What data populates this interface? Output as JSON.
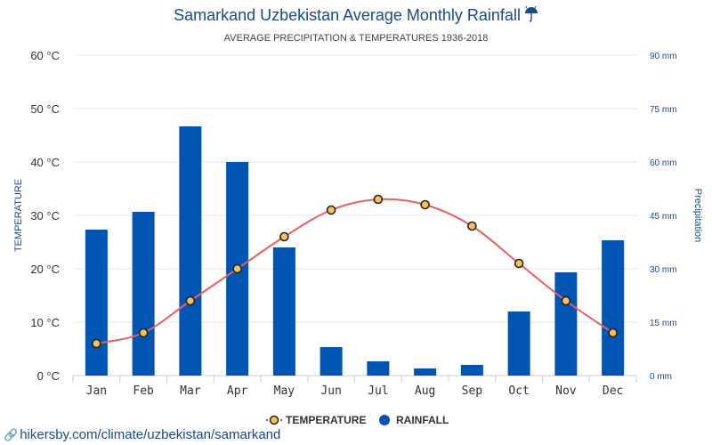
{
  "title": "Samarkand Uzbekistan Average Monthly Rainfall",
  "title_icon": "umbrella-rain-icon",
  "subtitle": "AVERAGE PRECIPITATION & TEMPERATURES 1936-2018",
  "footer_link": "hikersby.com/climate/uzbekistan/samarkand",
  "colors": {
    "title": "#1a4a8a",
    "bar": "#0055b3",
    "line": "#e86060",
    "marker_fill": "#f5c15a",
    "marker_stroke": "#222222",
    "right_axis": "#1a4a8a"
  },
  "chart_data": {
    "type": "bar+line",
    "categories": [
      "Jan",
      "Feb",
      "Mar",
      "Apr",
      "May",
      "Jun",
      "Jul",
      "Aug",
      "Sep",
      "Oct",
      "Nov",
      "Dec"
    ],
    "series": [
      {
        "name": "TEMPERATURE",
        "type": "line",
        "axis": "left",
        "values": [
          6,
          8,
          14,
          20,
          26,
          31,
          33,
          32,
          28,
          21,
          14,
          8
        ]
      },
      {
        "name": "RAINFALL",
        "type": "bar",
        "axis": "right",
        "values": [
          41,
          46,
          70,
          60,
          36,
          8,
          4,
          2,
          3,
          18,
          29,
          38
        ]
      }
    ],
    "ylabel_left": "TEMPERATURE",
    "ylabel_right": "Precipitation",
    "ylim_left": [
      0,
      60
    ],
    "ylim_right": [
      0,
      90
    ],
    "yticks_left": [
      "0 °C",
      "10 °C",
      "20 °C",
      "30 °C",
      "40 °C",
      "50 °C",
      "60 °C"
    ],
    "yticks_right": [
      "0 mm",
      "15 mm",
      "30 mm",
      "45 mm",
      "60 mm",
      "75 mm",
      "90 mm"
    ],
    "grid": true,
    "legend_position": "bottom"
  }
}
